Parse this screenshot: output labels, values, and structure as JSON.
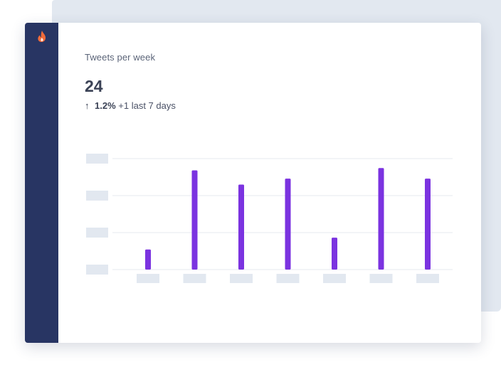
{
  "header": {
    "title": "Tweets per week"
  },
  "summary": {
    "value": "24",
    "change_percent": "1.2%",
    "change_text": "+1 last 7 days"
  },
  "sidebar": {
    "logo_icon": "flame-icon",
    "background": "#283563",
    "accent": "#f26b3a"
  },
  "chart_data": {
    "type": "bar",
    "title": "",
    "xlabel": "",
    "ylabel": "",
    "categories": [
      "",
      "",
      "",
      "",
      "",
      "",
      ""
    ],
    "values": [
      0.17,
      0.84,
      0.72,
      0.77,
      0.27,
      0.86,
      0.77
    ],
    "ylim": [
      0,
      1
    ],
    "grid": true,
    "tick_labels_placeholder": true,
    "bar_color": "#7b33e0",
    "placeholder_color": "#e2e8f0",
    "grid_color": "#e6e9ef"
  }
}
